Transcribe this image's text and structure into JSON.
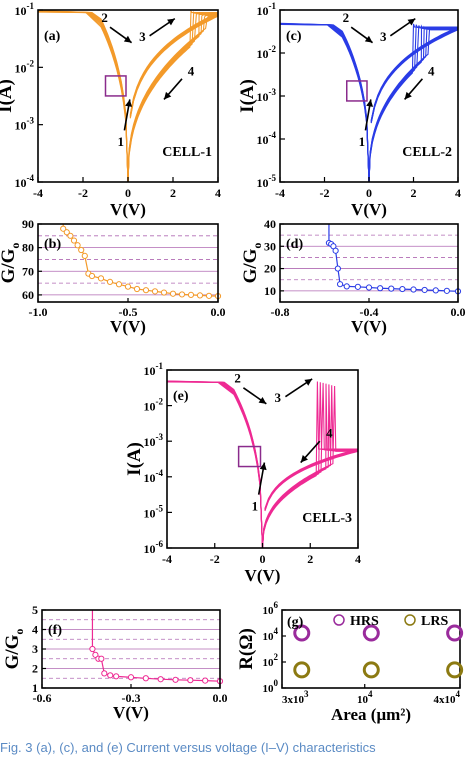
{
  "caption": "Fig. 3   (a), (c), and (e) Current versus voltage (I–V) characteristics",
  "colors": {
    "cell1": "#f39a2a",
    "cell2": "#2a3ce6",
    "cell3": "#ee2a93",
    "hrs": "#9a2b9c",
    "lrs": "#8c7a12",
    "purple": "#8a2b8c",
    "grid": "#b06ab3"
  },
  "chart_data": [
    {
      "panel": "(a)",
      "type": "line",
      "cell_label": "CELL-1",
      "xlabel": "V(V)",
      "ylabel": "I(A)",
      "xlim": [
        -4,
        4
      ],
      "ylim": [
        0.0001,
        0.1
      ],
      "yscale": "log",
      "xticks": [
        "-4",
        "-2",
        "0",
        "2",
        "4"
      ],
      "yticks": [
        "10",
        "10",
        "10",
        "10"
      ],
      "ytick_exp": [
        "-4",
        "-3",
        "-2",
        "-1"
      ],
      "arrows": [
        "1",
        "2",
        "3",
        "4"
      ],
      "color": "cell1",
      "sweep": {
        "compliance": 0.1,
        "vset": 2.8,
        "lrs_current_at_4V": 0.09
      }
    },
    {
      "panel": "(b)",
      "type": "line",
      "xlabel": "V(V)",
      "ylabel": "G/G",
      "ylabel_sub": "o",
      "xlim": [
        -1.0,
        0.0
      ],
      "ylim": [
        57,
        90
      ],
      "xticks": [
        "-1.0",
        "-0.5",
        "0.0"
      ],
      "yticks": [
        "60",
        "70",
        "80",
        "90"
      ],
      "color": "cell1",
      "x": [
        -0.86,
        -0.84,
        -0.82,
        -0.8,
        -0.78,
        -0.76,
        -0.74,
        -0.72,
        -0.7,
        -0.65,
        -0.6,
        -0.55,
        -0.5,
        -0.45,
        -0.4,
        -0.35,
        -0.3,
        -0.25,
        -0.2,
        -0.15,
        -0.1,
        -0.05,
        0.0
      ],
      "y": [
        88,
        86.5,
        85,
        83,
        81,
        79,
        76.5,
        69,
        68,
        67,
        65.5,
        64.5,
        63.5,
        62.5,
        62,
        61.5,
        61,
        60.5,
        60.2,
        60,
        59.8,
        59.6,
        59.5
      ]
    },
    {
      "panel": "(c)",
      "type": "line",
      "cell_label": "CELL-2",
      "xlabel": "V(V)",
      "ylabel": "I(A)",
      "xlim": [
        -4,
        4
      ],
      "ylim": [
        1e-05,
        0.1
      ],
      "yscale": "log",
      "xticks": [
        "-4",
        "-2",
        "0",
        "2",
        "4"
      ],
      "yticks": [
        "10",
        "10",
        "10",
        "10",
        "10"
      ],
      "ytick_exp": [
        "-5",
        "-4",
        "-3",
        "-2",
        "-1"
      ],
      "arrows": [
        "1",
        "2",
        "3",
        "4"
      ],
      "color": "cell2",
      "sweep": {
        "compliance": 0.05,
        "vset": 2.0,
        "lrs_current_at_4V": 0.04
      }
    },
    {
      "panel": "(d)",
      "type": "line",
      "xlabel": "V(V)",
      "ylabel": "G/G",
      "ylabel_sub": "o",
      "xlim": [
        -0.8,
        0.0
      ],
      "ylim": [
        5,
        40
      ],
      "xticks": [
        "-0.8",
        "-0.4",
        "0.0"
      ],
      "yticks": [
        "10",
        "20",
        "30",
        "40"
      ],
      "color": "cell2",
      "x": [
        -0.58,
        -0.57,
        -0.56,
        -0.55,
        -0.54,
        -0.53,
        -0.5,
        -0.45,
        -0.4,
        -0.35,
        -0.3,
        -0.25,
        -0.2,
        -0.15,
        -0.1,
        -0.05,
        0.0
      ],
      "y": [
        31.5,
        31,
        30,
        28,
        20,
        13,
        12,
        11.8,
        11.5,
        11.2,
        11,
        10.8,
        10.6,
        10.4,
        10.2,
        10,
        9.8
      ]
    },
    {
      "panel": "(e)",
      "type": "line",
      "cell_label": "CELL-3",
      "xlabel": "V(V)",
      "ylabel": "I(A)",
      "xlim": [
        -4,
        4
      ],
      "ylim": [
        1e-06,
        0.1
      ],
      "yscale": "log",
      "xticks": [
        "-4",
        "-2",
        "0",
        "2",
        "4"
      ],
      "yticks": [
        "10",
        "10",
        "10",
        "10",
        "10",
        "10"
      ],
      "ytick_exp": [
        "-6",
        "-5",
        "-4",
        "-3",
        "-2",
        "-1"
      ],
      "arrows": [
        "1",
        "2",
        "3",
        "4"
      ],
      "color": "cell3",
      "sweep": {
        "compliance": 0.05,
        "vset": 2.3,
        "lrs_current_at_4V": 0.0006
      }
    },
    {
      "panel": "(f)",
      "type": "line",
      "xlabel": "V(V)",
      "ylabel": "G/G",
      "ylabel_sub": "o",
      "xlim": [
        -0.6,
        0.0
      ],
      "ylim": [
        1,
        5
      ],
      "xticks": [
        "-0.6",
        "-0.3",
        "0.0"
      ],
      "yticks": [
        "1",
        "2",
        "3",
        "4",
        "5"
      ],
      "color": "cell3",
      "x": [
        -0.43,
        -0.42,
        -0.41,
        -0.4,
        -0.39,
        -0.37,
        -0.35,
        -0.3,
        -0.25,
        -0.2,
        -0.15,
        -0.1,
        -0.05,
        0.0
      ],
      "y": [
        3.0,
        2.7,
        2.5,
        2.5,
        1.75,
        1.65,
        1.6,
        1.55,
        1.5,
        1.45,
        1.42,
        1.4,
        1.38,
        1.35
      ]
    },
    {
      "panel": "(g)",
      "type": "scatter",
      "xlabel": "Area (μm²)",
      "ylabel": "R(Ω)",
      "xscale": "log",
      "yscale": "log",
      "xlim": [
        3000,
        40000
      ],
      "ylim": [
        1,
        1000000
      ],
      "xticks": [
        "3x10",
        "10",
        "4x10"
      ],
      "xtick_exp": [
        "3",
        "4",
        "4"
      ],
      "yticks": [
        "10",
        "10",
        "10",
        "10"
      ],
      "ytick_exp": [
        "0",
        "2",
        "4",
        "6"
      ],
      "series": [
        {
          "name": "HRS",
          "color": "hrs",
          "x": [
            4000,
            11000,
            37000
          ],
          "y": [
            17000,
            17000,
            17000
          ]
        },
        {
          "name": "LRS",
          "color": "lrs",
          "x": [
            4000,
            11000,
            37000
          ],
          "y": [
            25,
            25,
            25
          ]
        }
      ]
    }
  ]
}
